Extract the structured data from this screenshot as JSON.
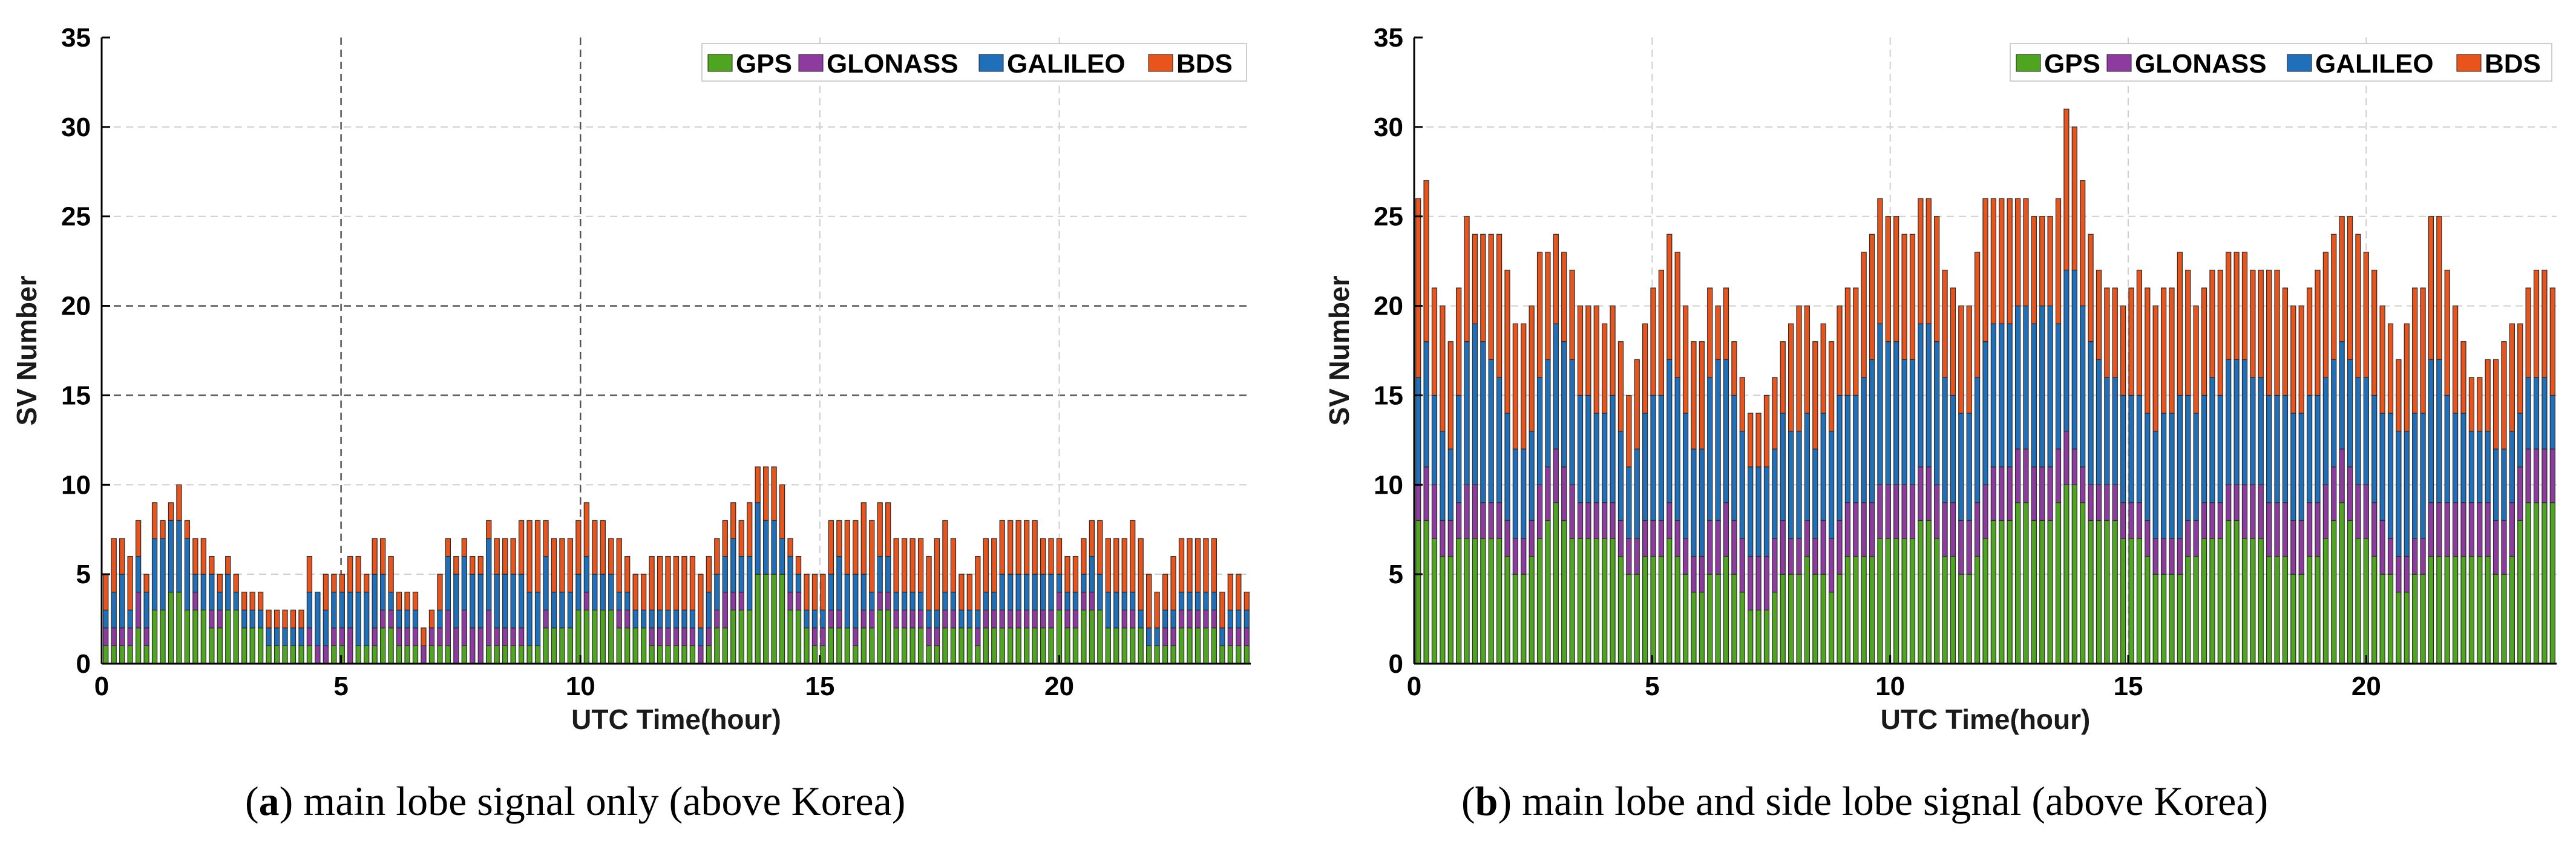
{
  "colors": {
    "GPS": "#4fa51f",
    "GLONASS": "#8e3ba0",
    "GALILEO": "#1f6fba",
    "BDS": "#e8541c"
  },
  "captions": [
    {
      "letter": "a",
      "text": ") main lobe signal only (above Korea)"
    },
    {
      "letter": "b",
      "text": ") main lobe and side lobe signal (above Korea)"
    }
  ],
  "chart_data": [
    {
      "type": "bar",
      "stacked": true,
      "panel": "a",
      "xlabel": "UTC Time(hour)",
      "ylabel": "SV Number",
      "xlim": [
        0,
        24
      ],
      "ylim": [
        0,
        35
      ],
      "xticks": [
        "0",
        "5",
        "10",
        "20"
      ],
      "xtick_values": [
        0,
        5,
        10,
        20
      ],
      "xtick_extra": {
        "label": "15",
        "value": 15
      },
      "yticks": [
        "0",
        "5",
        "10",
        "15",
        "20",
        "25",
        "30",
        "35"
      ],
      "legend": [
        "GPS",
        "GLONASS",
        "GALILEO",
        "BDS"
      ],
      "legend_position": "top-right",
      "x_start": 0.0,
      "x_step": 0.1667,
      "series": [
        {
          "name": "GPS",
          "values": [
            1,
            1,
            1,
            1,
            2,
            1,
            3,
            3,
            4,
            4,
            3,
            3,
            3,
            2,
            2,
            3,
            3,
            2,
            2,
            2,
            1,
            1,
            1,
            1,
            1,
            1,
            0,
            0,
            1,
            1,
            0,
            1,
            1,
            1,
            2,
            2,
            1,
            1,
            1,
            0,
            1,
            1,
            1,
            0,
            1,
            0,
            0,
            1,
            1,
            1,
            1,
            1,
            1,
            1,
            2,
            2,
            2,
            2,
            3,
            3,
            3,
            3,
            3,
            2,
            2,
            2,
            2,
            1,
            1,
            1,
            1,
            1,
            1,
            0,
            1,
            2,
            2,
            3,
            3,
            3,
            5,
            5,
            5,
            5,
            3,
            3,
            2,
            1,
            1,
            2,
            2,
            2,
            1,
            2,
            2,
            3,
            3,
            2,
            2,
            2,
            2,
            1,
            1,
            2,
            2,
            2,
            2,
            1,
            2,
            2,
            2,
            2,
            2,
            2,
            2,
            2,
            2,
            3,
            2,
            2,
            3,
            3,
            3,
            2,
            2,
            2,
            2,
            2,
            1,
            1,
            1,
            1,
            2,
            2,
            2,
            2,
            2,
            1,
            1,
            1,
            1
          ]
        },
        {
          "name": "GLONASS",
          "values": [
            1,
            1,
            1,
            1,
            2,
            1,
            0,
            0,
            0,
            0,
            0,
            1,
            0,
            1,
            1,
            0,
            0,
            0,
            0,
            0,
            0,
            0,
            0,
            0,
            0,
            1,
            1,
            1,
            1,
            1,
            2,
            0,
            0,
            1,
            1,
            1,
            1,
            1,
            1,
            1,
            1,
            1,
            2,
            2,
            2,
            2,
            2,
            2,
            1,
            1,
            1,
            1,
            0,
            0,
            1,
            0,
            0,
            0,
            0,
            1,
            0,
            0,
            0,
            1,
            1,
            0,
            0,
            1,
            1,
            1,
            1,
            1,
            1,
            1,
            1,
            1,
            2,
            1,
            1,
            0,
            0,
            0,
            0,
            0,
            1,
            1,
            0,
            1,
            1,
            1,
            1,
            0,
            1,
            1,
            1,
            1,
            1,
            1,
            1,
            1,
            1,
            1,
            1,
            1,
            1,
            0,
            0,
            1,
            1,
            1,
            1,
            1,
            1,
            1,
            1,
            1,
            1,
            1,
            1,
            1,
            1,
            1,
            0,
            0,
            0,
            1,
            1,
            0,
            0,
            0,
            1,
            1,
            1,
            1,
            1,
            1,
            1,
            0,
            1,
            1,
            1
          ]
        },
        {
          "name": "GALILEO",
          "values": [
            1,
            2,
            3,
            1,
            2,
            2,
            4,
            4,
            4,
            4,
            4,
            1,
            2,
            2,
            1,
            2,
            1,
            1,
            1,
            1,
            1,
            1,
            1,
            1,
            1,
            2,
            3,
            2,
            2,
            2,
            2,
            3,
            3,
            3,
            2,
            1,
            1,
            1,
            1,
            0,
            0,
            1,
            3,
            3,
            3,
            3,
            3,
            4,
            3,
            3,
            3,
            3,
            3,
            3,
            3,
            2,
            2,
            2,
            2,
            2,
            2,
            2,
            2,
            1,
            1,
            1,
            1,
            1,
            1,
            1,
            1,
            1,
            1,
            1,
            2,
            2,
            2,
            3,
            2,
            3,
            4,
            3,
            3,
            2,
            2,
            1,
            1,
            1,
            1,
            2,
            3,
            3,
            3,
            2,
            1,
            2,
            2,
            1,
            1,
            1,
            1,
            1,
            1,
            1,
            1,
            1,
            1,
            1,
            1,
            1,
            2,
            2,
            2,
            2,
            2,
            2,
            2,
            1,
            1,
            1,
            1,
            2,
            2,
            2,
            2,
            1,
            1,
            1,
            1,
            1,
            1,
            1,
            1,
            1,
            1,
            1,
            1,
            1,
            1,
            1,
            1
          ]
        },
        {
          "name": "BDS",
          "values": [
            2,
            3,
            2,
            3,
            2,
            1,
            2,
            1,
            1,
            2,
            1,
            2,
            2,
            1,
            1,
            1,
            1,
            1,
            1,
            1,
            1,
            1,
            1,
            1,
            1,
            2,
            0,
            2,
            1,
            1,
            2,
            2,
            1,
            2,
            2,
            2,
            1,
            1,
            1,
            1,
            1,
            2,
            1,
            1,
            1,
            1,
            1,
            1,
            2,
            2,
            2,
            3,
            4,
            4,
            2,
            3,
            3,
            3,
            3,
            3,
            3,
            3,
            2,
            3,
            2,
            2,
            2,
            3,
            3,
            3,
            3,
            3,
            3,
            3,
            2,
            2,
            2,
            2,
            2,
            3,
            2,
            3,
            3,
            3,
            1,
            1,
            2,
            2,
            2,
            3,
            2,
            3,
            3,
            4,
            4,
            3,
            3,
            3,
            3,
            3,
            3,
            3,
            4,
            4,
            3,
            2,
            2,
            3,
            3,
            3,
            3,
            3,
            3,
            3,
            3,
            2,
            2,
            2,
            2,
            2,
            2,
            2,
            3,
            3,
            3,
            3,
            4,
            4,
            3,
            2,
            2,
            3,
            3,
            3,
            3,
            3,
            3,
            2,
            2,
            2,
            1
          ]
        }
      ]
    },
    {
      "type": "bar",
      "stacked": true,
      "panel": "b",
      "xlabel": "UTC Time(hour)",
      "ylabel": "SV Number",
      "xlim": [
        0,
        24
      ],
      "ylim": [
        0,
        35
      ],
      "xticks": [
        "0",
        "5",
        "10",
        "15",
        "20"
      ],
      "xtick_values": [
        0,
        5,
        10,
        15,
        20
      ],
      "yticks": [
        "0",
        "5",
        "10",
        "15",
        "20",
        "25",
        "30",
        "35"
      ],
      "legend": [
        "GPS",
        "GLONASS",
        "GALILEO",
        "BDS"
      ],
      "legend_position": "top-right",
      "x_start": 0.0,
      "x_step": 0.1667,
      "series": [
        {
          "name": "GPS",
          "values": [
            8,
            8,
            7,
            6,
            6,
            7,
            7,
            7,
            7,
            7,
            7,
            6,
            5,
            5,
            6,
            7,
            8,
            9,
            8,
            7,
            7,
            7,
            7,
            7,
            7,
            6,
            5,
            5,
            6,
            6,
            6,
            7,
            6,
            5,
            4,
            4,
            5,
            5,
            6,
            5,
            4,
            3,
            3,
            3,
            4,
            5,
            5,
            5,
            6,
            5,
            5,
            4,
            5,
            6,
            6,
            6,
            6,
            7,
            7,
            7,
            7,
            7,
            8,
            8,
            7,
            6,
            6,
            5,
            5,
            6,
            7,
            8,
            8,
            8,
            9,
            9,
            8,
            8,
            8,
            9,
            10,
            10,
            9,
            8,
            8,
            8,
            8,
            7,
            7,
            7,
            6,
            5,
            5,
            5,
            5,
            6,
            6,
            7,
            7,
            7,
            8,
            8,
            7,
            7,
            7,
            6,
            6,
            6,
            5,
            5,
            6,
            6,
            7,
            8,
            9,
            8,
            7,
            7,
            6,
            5,
            5,
            4,
            4,
            5,
            5,
            6,
            6,
            6,
            6,
            6,
            6,
            6,
            6,
            5,
            5,
            6,
            8,
            9,
            9,
            9,
            9
          ]
        },
        {
          "name": "GLONASS",
          "values": [
            2,
            3,
            3,
            2,
            2,
            2,
            3,
            3,
            2,
            2,
            2,
            2,
            2,
            2,
            2,
            3,
            3,
            3,
            3,
            3,
            2,
            2,
            2,
            2,
            2,
            2,
            2,
            2,
            2,
            2,
            2,
            2,
            2,
            2,
            2,
            2,
            3,
            3,
            3,
            3,
            3,
            3,
            3,
            3,
            3,
            3,
            2,
            2,
            2,
            2,
            3,
            3,
            3,
            3,
            3,
            3,
            3,
            3,
            3,
            3,
            3,
            3,
            3,
            3,
            3,
            3,
            3,
            3,
            3,
            3,
            3,
            3,
            3,
            3,
            3,
            3,
            3,
            3,
            3,
            3,
            3,
            2,
            2,
            2,
            2,
            2,
            2,
            2,
            2,
            2,
            2,
            2,
            2,
            2,
            2,
            2,
            2,
            2,
            2,
            2,
            2,
            2,
            3,
            3,
            3,
            3,
            3,
            3,
            3,
            3,
            3,
            3,
            3,
            3,
            3,
            3,
            3,
            3,
            3,
            3,
            2,
            2,
            2,
            2,
            2,
            3,
            3,
            3,
            3,
            3,
            3,
            3,
            3,
            3,
            3,
            3,
            3,
            3,
            3,
            3,
            3
          ]
        },
        {
          "name": "GALILEO",
          "values": [
            6,
            7,
            5,
            5,
            4,
            6,
            8,
            9,
            9,
            8,
            7,
            6,
            5,
            5,
            5,
            6,
            6,
            7,
            7,
            7,
            6,
            6,
            5,
            5,
            6,
            5,
            4,
            5,
            6,
            7,
            7,
            8,
            8,
            7,
            6,
            6,
            8,
            9,
            8,
            7,
            6,
            5,
            5,
            5,
            5,
            6,
            6,
            6,
            6,
            5,
            6,
            6,
            7,
            6,
            6,
            7,
            8,
            9,
            8,
            8,
            7,
            7,
            8,
            8,
            8,
            7,
            6,
            6,
            6,
            7,
            8,
            8,
            8,
            8,
            8,
            8,
            8,
            9,
            9,
            7,
            9,
            10,
            9,
            8,
            7,
            6,
            6,
            6,
            6,
            6,
            6,
            6,
            7,
            7,
            8,
            7,
            6,
            6,
            7,
            6,
            7,
            7,
            7,
            6,
            6,
            6,
            6,
            6,
            6,
            6,
            6,
            6,
            6,
            6,
            6,
            6,
            6,
            6,
            6,
            6,
            7,
            7,
            7,
            7,
            7,
            8,
            8,
            6,
            5,
            5,
            4,
            4,
            4,
            4,
            4,
            4,
            3,
            4,
            4,
            4,
            3
          ]
        },
        {
          "name": "BDS",
          "values": [
            10,
            9,
            6,
            7,
            6,
            6,
            7,
            5,
            6,
            7,
            8,
            8,
            7,
            7,
            7,
            7,
            6,
            5,
            5,
            5,
            5,
            5,
            6,
            5,
            5,
            5,
            4,
            5,
            5,
            6,
            7,
            7,
            7,
            6,
            6,
            6,
            5,
            3,
            4,
            3,
            3,
            3,
            3,
            4,
            4,
            4,
            6,
            7,
            6,
            6,
            5,
            5,
            5,
            6,
            6,
            7,
            7,
            7,
            7,
            7,
            7,
            7,
            7,
            7,
            7,
            6,
            6,
            6,
            6,
            7,
            8,
            7,
            7,
            7,
            6,
            6,
            6,
            5,
            5,
            7,
            9,
            8,
            7,
            6,
            5,
            5,
            5,
            5,
            6,
            7,
            7,
            7,
            7,
            7,
            8,
            7,
            6,
            6,
            6,
            7,
            6,
            6,
            6,
            6,
            6,
            7,
            7,
            6,
            6,
            6,
            6,
            7,
            7,
            7,
            7,
            8,
            8,
            7,
            7,
            6,
            5,
            4,
            6,
            7,
            7,
            8,
            8,
            7,
            6,
            4,
            3,
            3,
            4,
            5,
            6,
            6,
            5,
            5,
            6,
            6,
            6
          ]
        }
      ]
    }
  ]
}
